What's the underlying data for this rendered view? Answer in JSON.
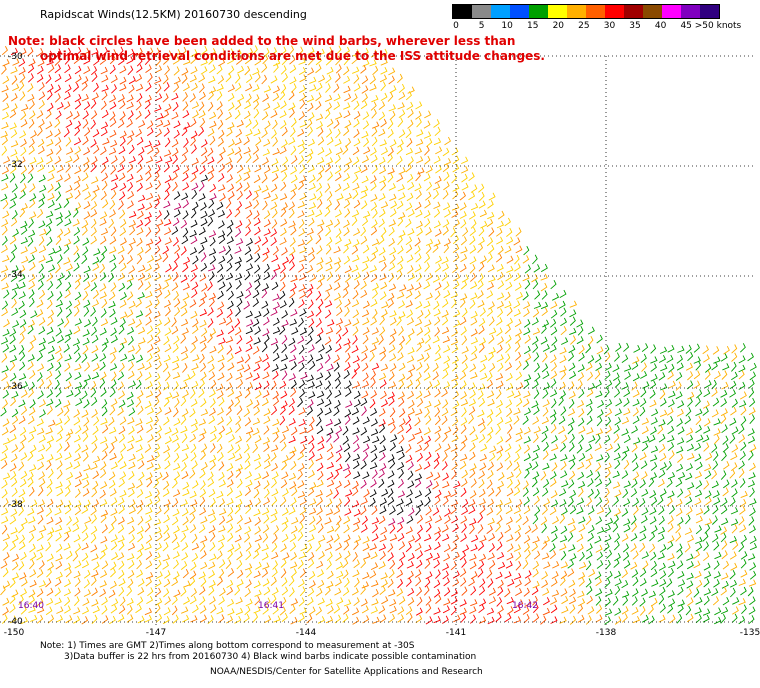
{
  "header": {
    "title": "Rapidscat Winds(12.5KM) 20160730 descending",
    "note_line1": "Note: black circles have been added to the wind barbs, wherever less than",
    "note_line2": "optimal wind retrieval conditions are met due to the ISS attitude changes."
  },
  "legend": {
    "labels": [
      "0",
      "5",
      "10",
      "15",
      "20",
      "25",
      "30",
      "35",
      "40",
      "45",
      ">50 knots"
    ],
    "colors": [
      "#000000",
      "#8a8a8a",
      "#00a0ff",
      "#0050ff",
      "#00a000",
      "#ffff00",
      "#ffb000",
      "#ff6000",
      "#ff0000",
      "#a00000",
      "#8a4a00",
      "#ff00ff",
      "#8000c0",
      "#300080"
    ]
  },
  "map": {
    "lat_labels": [
      "-30",
      "-32",
      "-34",
      "-36",
      "-38",
      "-40"
    ],
    "lon_labels": [
      "-150",
      "-147",
      "-144",
      "-141",
      "-138",
      "-135"
    ],
    "time_labels": [
      "16:40",
      "16:41",
      "16:42"
    ]
  },
  "footer": {
    "line1": "Note: 1) Times are GMT 2)Times along bottom correspond to measurement at -30S",
    "line2": "3)Data buffer is 22 hrs from 20160730 4) Black wind barbs indicate possible contamination",
    "line3": "NOAA/NESDIS/Center for Satellite Applications and Research"
  }
}
